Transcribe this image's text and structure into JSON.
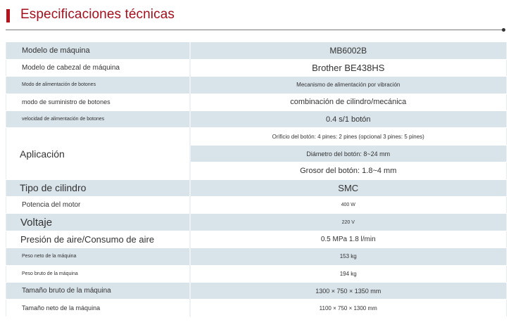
{
  "header": {
    "title": "Especificaciones técnicas",
    "accent": "#b5121b"
  },
  "specs": [
    {
      "label": "Modelo de máquina",
      "value": "MB6002B"
    },
    {
      "label": "Modelo de cabezal de máquina",
      "value": "Brother BE438HS"
    },
    {
      "label": "Modo de alimentación de botones",
      "value": "Mecanismo de alimentación por vibración"
    },
    {
      "label": "modo de suministro de botones",
      "value": "combinación de cilindro/mecánica"
    },
    {
      "label": "velocidad de alimentación de botones",
      "value": "0.4 s/1 botón"
    },
    {
      "label": "Aplicación",
      "values": [
        "Orificio del botón: 4 pines: 2 pines (opcional 3 pines: 5 pines)",
        "Diámetro del botón: 8~24 mm",
        "Grosor del botón: 1.8~4 mm"
      ]
    },
    {
      "label": "Tipo de cilindro",
      "value": "SMC"
    },
    {
      "label": "Potencia del motor",
      "value": "400 W"
    },
    {
      "label": "Voltaje",
      "value": "220 V"
    },
    {
      "label": "Presión de aire/Consumo de aire",
      "value": "0.5 MPa 1.8 l/min"
    },
    {
      "label": "Peso neto de la máquina",
      "value": "153 kg"
    },
    {
      "label": "Peso bruto de la máquina",
      "value": "194 kg"
    },
    {
      "label": "Tamaño bruto de la máquina",
      "value": "1300 × 750 × 1350 mm"
    },
    {
      "label": "Tamaño neto de la máquina",
      "value": "1100 × 750 × 1300 mm"
    }
  ]
}
